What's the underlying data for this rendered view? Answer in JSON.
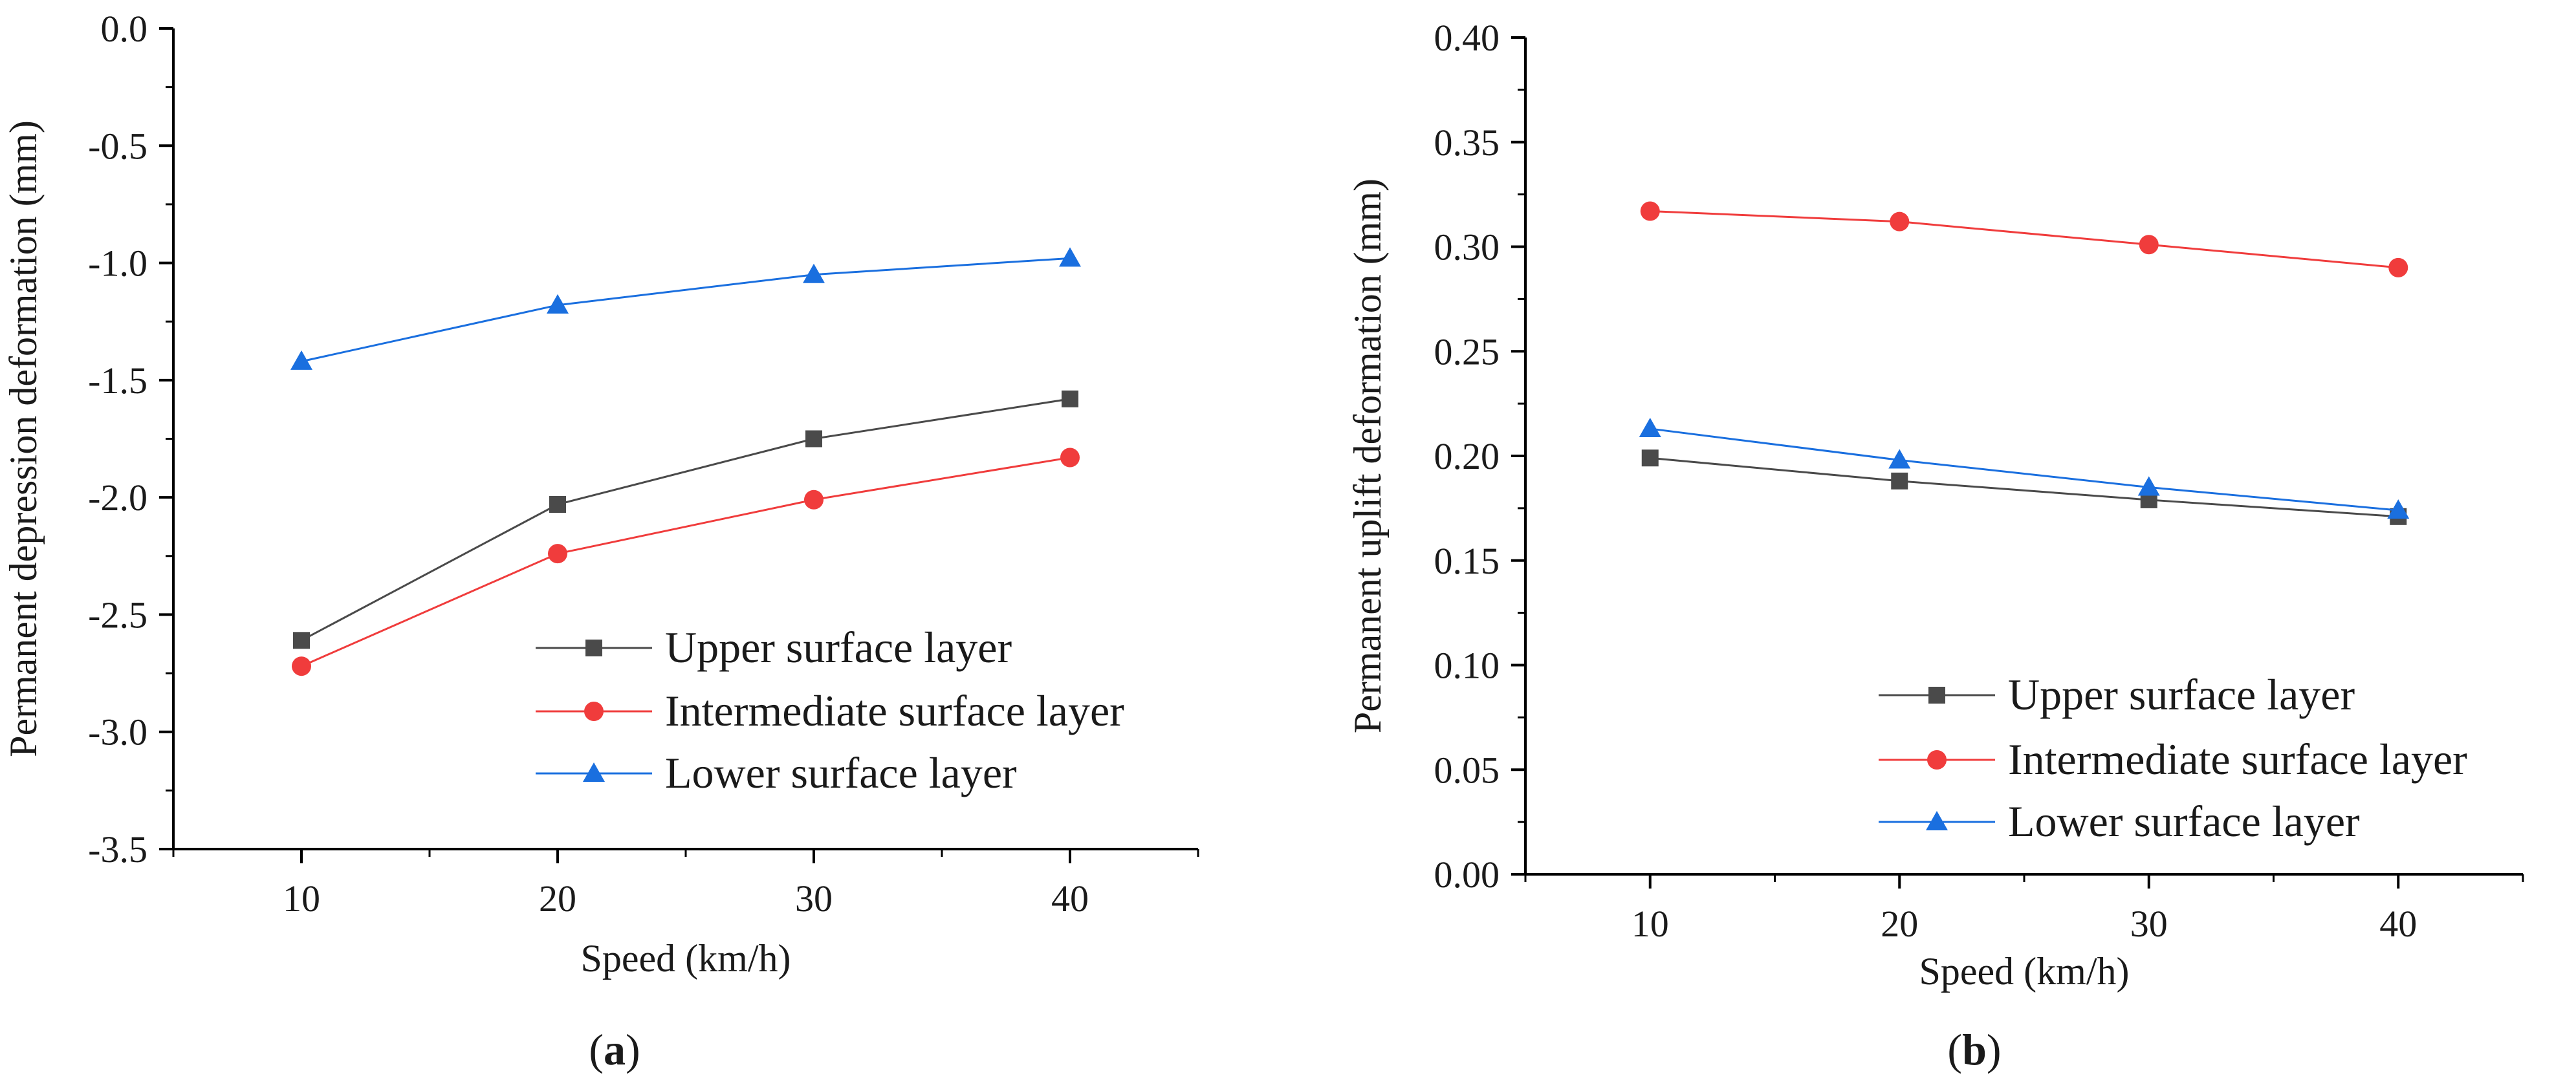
{
  "chart_data": [
    {
      "type": "line",
      "panel_label": "a",
      "title": "",
      "xlabel": "Speed (km/h)",
      "ylabel": "Permanent depression deformation (mm)",
      "x": [
        10,
        20,
        30,
        40
      ],
      "xlim": [
        5,
        45
      ],
      "ylim": [
        -3.5,
        0.0
      ],
      "xticks": [
        10,
        20,
        30,
        40
      ],
      "xtick_labels": [
        "10",
        "20",
        "30",
        "40"
      ],
      "yticks": [
        0.0,
        -0.5,
        -1.0,
        -1.5,
        -2.0,
        -2.5,
        -3.0,
        -3.5
      ],
      "ytick_labels": [
        "0.0",
        "-0.5",
        "-1.0",
        "-1.5",
        "-2.0",
        "-2.5",
        "-3.0",
        "-3.5"
      ],
      "grid": false,
      "legend_position": "bottom-right",
      "series": [
        {
          "name": "Upper surface layer",
          "marker": "square",
          "color": "#4a4a4a",
          "values": [
            -2.61,
            -2.03,
            -1.75,
            -1.58
          ]
        },
        {
          "name": "Intermediate surface layer",
          "marker": "circle",
          "color": "#f03c3c",
          "values": [
            -2.72,
            -2.24,
            -2.01,
            -1.83
          ]
        },
        {
          "name": "Lower surface layer",
          "marker": "triangle",
          "color": "#1a6fdf",
          "values": [
            -1.42,
            -1.18,
            -1.05,
            -0.98
          ]
        }
      ]
    },
    {
      "type": "line",
      "panel_label": "b",
      "title": "",
      "xlabel": "Speed (km/h)",
      "ylabel": "Permanent uplift deformation (mm)",
      "x": [
        10,
        20,
        30,
        40
      ],
      "xlim": [
        5,
        45
      ],
      "ylim": [
        0.0,
        0.4
      ],
      "xticks": [
        10,
        20,
        30,
        40
      ],
      "xtick_labels": [
        "10",
        "20",
        "30",
        "40"
      ],
      "yticks": [
        0.0,
        0.05,
        0.1,
        0.15,
        0.2,
        0.25,
        0.3,
        0.35,
        0.4
      ],
      "ytick_labels": [
        "0.00",
        "0.05",
        "0.10",
        "0.15",
        "0.20",
        "0.25",
        "0.30",
        "0.35",
        "0.40"
      ],
      "grid": false,
      "legend_position": "bottom-right",
      "series": [
        {
          "name": "Upper surface layer",
          "marker": "square",
          "color": "#4a4a4a",
          "values": [
            0.199,
            0.188,
            0.179,
            0.171
          ]
        },
        {
          "name": "Intermediate surface layer",
          "marker": "circle",
          "color": "#f03c3c",
          "values": [
            0.317,
            0.312,
            0.301,
            0.29
          ]
        },
        {
          "name": "Lower surface layer",
          "marker": "triangle",
          "color": "#1a6fdf",
          "values": [
            0.213,
            0.198,
            0.185,
            0.174
          ]
        }
      ]
    }
  ]
}
